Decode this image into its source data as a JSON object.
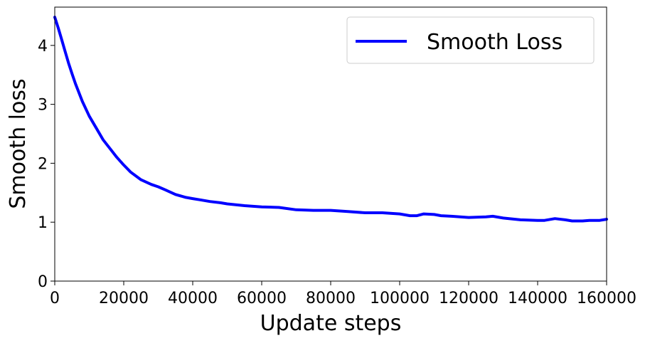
{
  "chart_data": {
    "type": "line",
    "title": "",
    "xlabel": "Update steps",
    "ylabel": "Smooth loss",
    "xlim": [
      0,
      160000
    ],
    "ylim": [
      0,
      4.65
    ],
    "xticks": [
      0,
      20000,
      40000,
      60000,
      80000,
      100000,
      120000,
      140000,
      160000
    ],
    "xtick_labels": [
      "0",
      "20000",
      "40000",
      "60000",
      "80000",
      "100000",
      "120000",
      "140000",
      "160000"
    ],
    "yticks": [
      0,
      1,
      2,
      3,
      4
    ],
    "ytick_labels": [
      "0",
      "1",
      "2",
      "3",
      "4"
    ],
    "grid": false,
    "legend": {
      "placement": "top-right",
      "entries": [
        "Smooth Loss"
      ]
    },
    "series": [
      {
        "name": "Smooth Loss",
        "color": "#0000ff",
        "x": [
          0,
          1000,
          2000,
          3000,
          4000,
          5000,
          6000,
          8000,
          10000,
          12000,
          14000,
          16000,
          18000,
          20000,
          22000,
          25000,
          28000,
          30000,
          32000,
          35000,
          38000,
          40000,
          42000,
          45000,
          48000,
          50000,
          55000,
          60000,
          65000,
          70000,
          75000,
          80000,
          85000,
          90000,
          95000,
          100000,
          103000,
          105000,
          107000,
          110000,
          112000,
          115000,
          120000,
          125000,
          127000,
          130000,
          135000,
          140000,
          142000,
          145000,
          148000,
          150000,
          153000,
          155000,
          158000,
          160000
        ],
        "y": [
          4.48,
          4.3,
          4.1,
          3.9,
          3.7,
          3.52,
          3.35,
          3.05,
          2.8,
          2.6,
          2.4,
          2.25,
          2.1,
          1.97,
          1.85,
          1.72,
          1.64,
          1.6,
          1.55,
          1.47,
          1.42,
          1.4,
          1.38,
          1.35,
          1.33,
          1.31,
          1.28,
          1.26,
          1.25,
          1.21,
          1.2,
          1.2,
          1.18,
          1.16,
          1.16,
          1.14,
          1.11,
          1.11,
          1.14,
          1.13,
          1.11,
          1.1,
          1.08,
          1.09,
          1.1,
          1.07,
          1.04,
          1.03,
          1.03,
          1.06,
          1.04,
          1.02,
          1.02,
          1.03,
          1.03,
          1.05
        ]
      }
    ]
  }
}
